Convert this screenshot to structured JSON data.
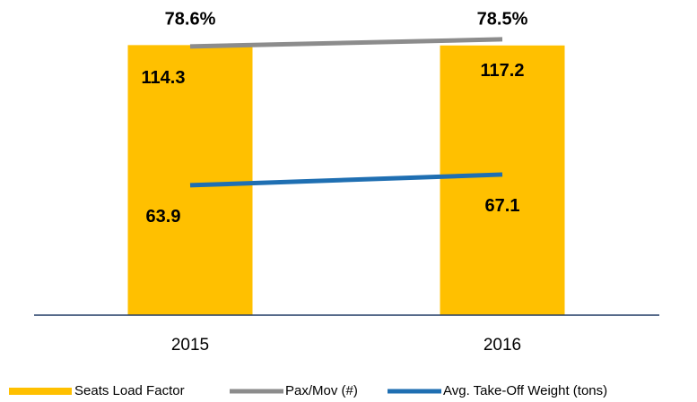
{
  "chart_data": {
    "type": "bar-line",
    "categories": [
      "2015",
      "2016"
    ],
    "ylim": [
      0,
      80
    ],
    "y2lim": [
      5.6,
      116.8
    ],
    "y3lim": [
      25.2,
      107.1
    ],
    "series": [
      {
        "name": "Seats Load Factor",
        "type": "bar",
        "color": "#FFC000",
        "values": [
          78.6,
          78.5
        ],
        "value_labels": [
          "78.6%",
          "78.5%"
        ]
      },
      {
        "name": "Pax/Mov (#)",
        "type": "line",
        "axis": "y2",
        "color": "#8C8C8C",
        "values": [
          114.3,
          117.2
        ]
      },
      {
        "name": "Avg. Take-Off Weight (tons)",
        "type": "line",
        "axis": "y3",
        "color": "#1F6FB2",
        "values": [
          63.9,
          67.1
        ]
      }
    ]
  }
}
